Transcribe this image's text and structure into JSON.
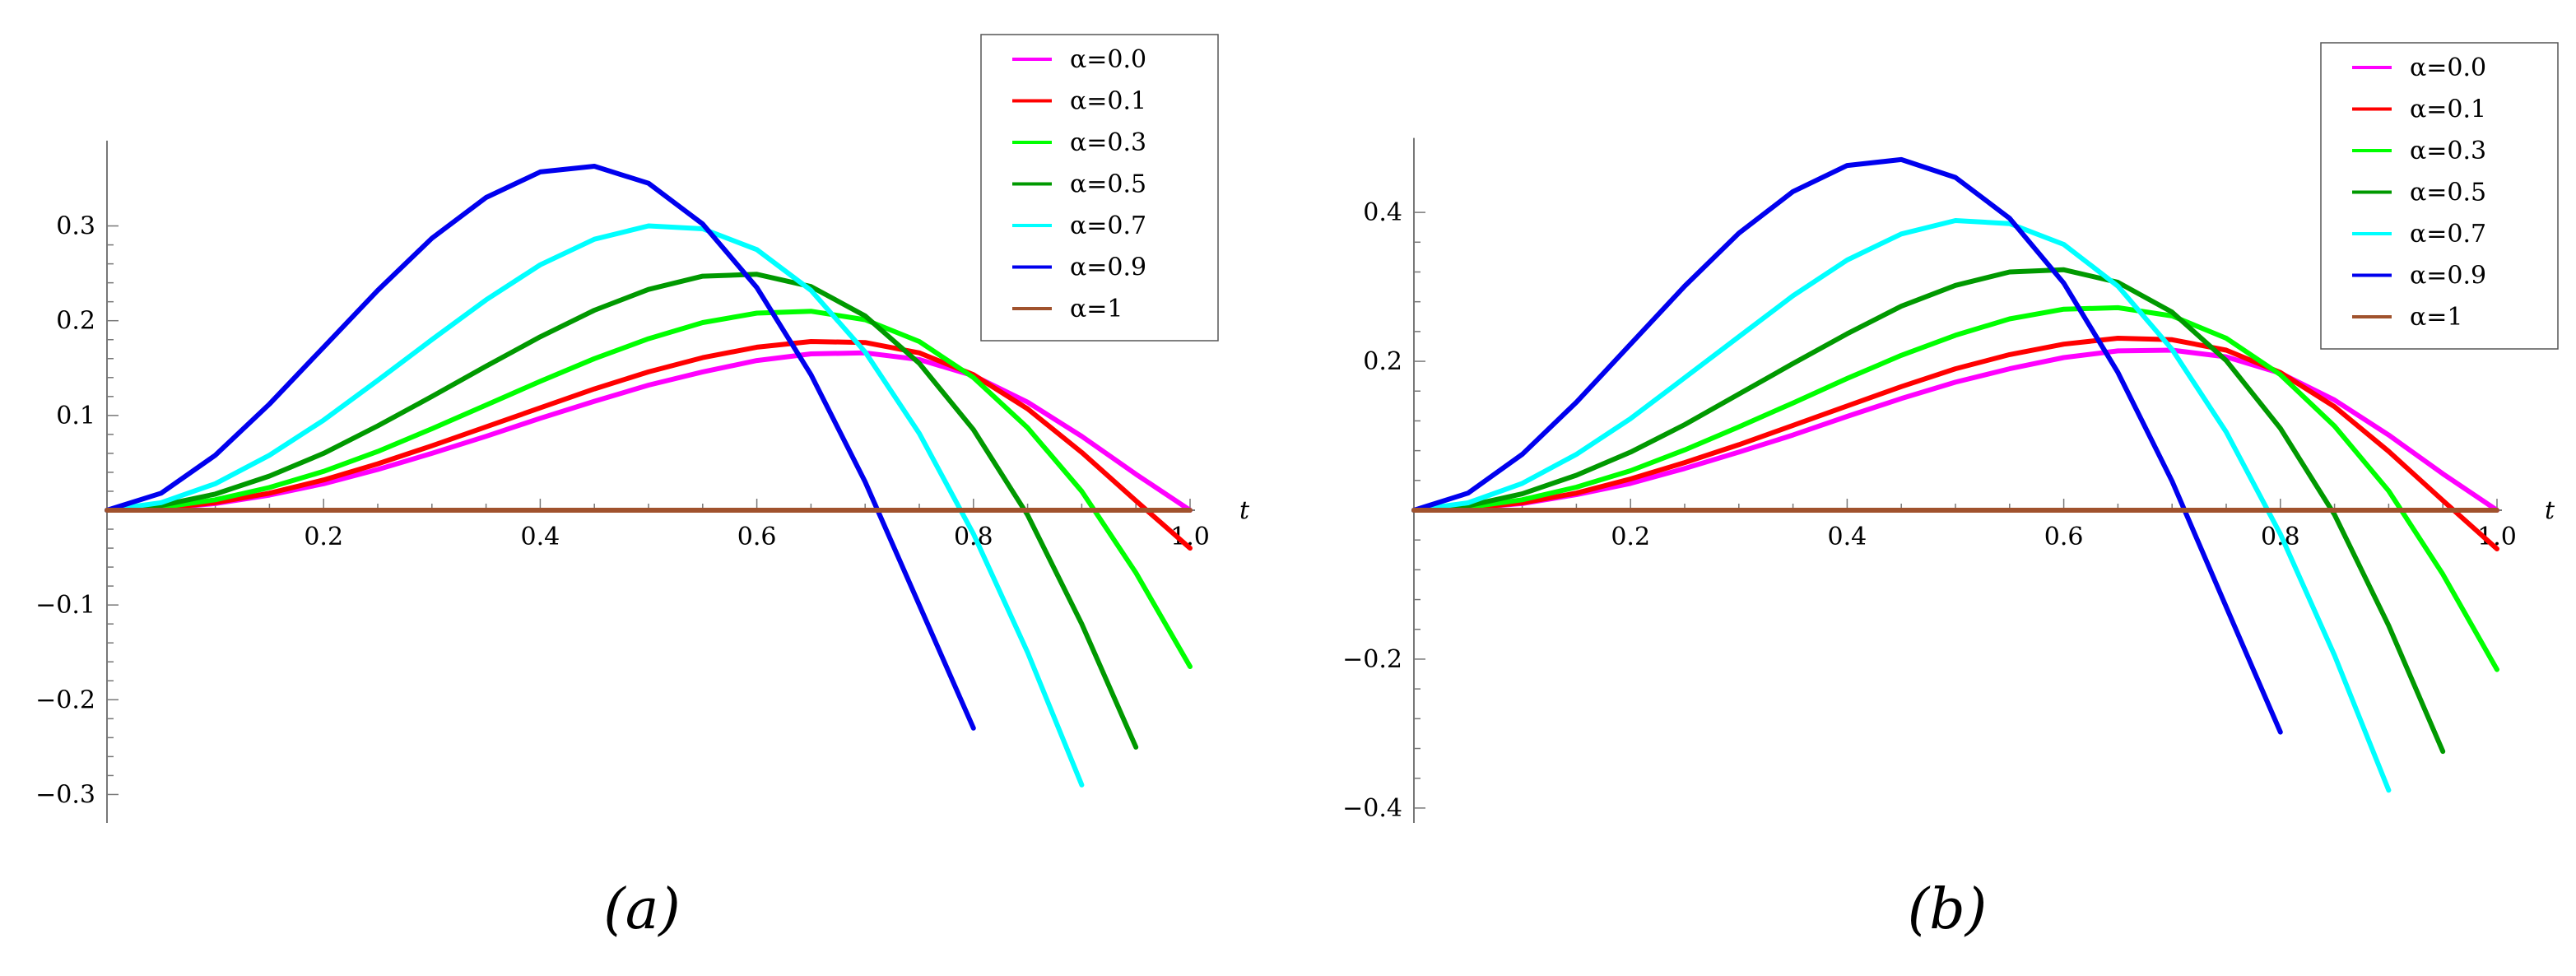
{
  "chart_data": [
    {
      "type": "line",
      "caption": "(a)",
      "xlabel": "t",
      "ylabel": "",
      "xlim": [
        0,
        1.0
      ],
      "ylim": [
        -0.33,
        0.39
      ],
      "x_ticks": [
        0.2,
        0.4,
        0.6,
        0.8,
        1.0
      ],
      "x_tick_labels": [
        "0.2",
        "0.4",
        "0.6",
        "0.8",
        "1.0"
      ],
      "y_ticks": [
        -0.3,
        -0.2,
        -0.1,
        0.1,
        0.2,
        0.3
      ],
      "y_tick_labels": [
        "−0.3",
        "−0.2",
        "−0.1",
        "0.1",
        "0.2",
        "0.3"
      ],
      "grid": false,
      "legend_position": "top-right",
      "x": [
        0,
        0.05,
        0.1,
        0.15,
        0.2,
        0.25,
        0.3,
        0.35,
        0.4,
        0.45,
        0.5,
        0.55,
        0.6,
        0.65,
        0.7,
        0.75,
        0.8,
        0.85,
        0.9,
        0.95,
        1.0
      ],
      "series": [
        {
          "name": "α=0.0",
          "color": "#ff00ff",
          "values": [
            0,
            0.002,
            0.007,
            0.016,
            0.028,
            0.043,
            0.06,
            0.078,
            0.097,
            0.115,
            0.132,
            0.146,
            0.158,
            0.165,
            0.166,
            0.159,
            0.142,
            0.114,
            0.078,
            0.038,
            0.0
          ]
        },
        {
          "name": "α=0.1",
          "color": "#ff0000",
          "values": [
            0,
            0.002,
            0.008,
            0.018,
            0.032,
            0.049,
            0.068,
            0.088,
            0.108,
            0.128,
            0.146,
            0.161,
            0.172,
            0.178,
            0.177,
            0.166,
            0.143,
            0.107,
            0.061,
            0.01,
            -0.04
          ]
        },
        {
          "name": "α=0.3",
          "color": "#00ff00",
          "values": [
            0,
            0.003,
            0.011,
            0.024,
            0.041,
            0.062,
            0.086,
            0.111,
            0.136,
            0.16,
            0.181,
            0.198,
            0.208,
            0.21,
            0.201,
            0.178,
            0.14,
            0.087,
            0.02,
            -0.066,
            -0.165
          ]
        },
        {
          "name": "α=0.5",
          "color": "#009900",
          "values": [
            0,
            0.005,
            0.017,
            0.036,
            0.06,
            0.089,
            0.12,
            0.152,
            0.183,
            0.211,
            0.233,
            0.247,
            0.249,
            0.236,
            0.205,
            0.155,
            0.085,
            -0.005,
            -0.12,
            -0.25,
            null
          ]
        },
        {
          "name": "α=0.7",
          "color": "#00ffff",
          "values": [
            0,
            0.008,
            0.028,
            0.058,
            0.095,
            0.137,
            0.18,
            0.222,
            0.259,
            0.286,
            0.3,
            0.297,
            0.275,
            0.232,
            0.167,
            0.081,
            -0.025,
            -0.15,
            -0.29,
            null,
            null
          ]
        },
        {
          "name": "α=0.9",
          "color": "#0000ee",
          "values": [
            0,
            0.018,
            0.058,
            0.112,
            0.172,
            0.232,
            0.287,
            0.33,
            0.357,
            0.363,
            0.345,
            0.302,
            0.235,
            0.143,
            0.03,
            -0.1,
            -0.23,
            null,
            null,
            null,
            null
          ]
        },
        {
          "name": "α=1",
          "color": "#a0522d",
          "values": [
            0,
            0,
            0,
            0,
            0,
            0,
            0,
            0,
            0,
            0,
            0,
            0,
            0,
            0,
            0,
            0,
            0,
            0,
            0,
            0,
            0
          ]
        }
      ]
    },
    {
      "type": "line",
      "caption": "(b)",
      "xlabel": "t",
      "ylabel": "",
      "xlim": [
        0,
        1.0
      ],
      "ylim": [
        -0.42,
        0.5
      ],
      "x_ticks": [
        0.2,
        0.4,
        0.6,
        0.8,
        1.0
      ],
      "x_tick_labels": [
        "0.2",
        "0.4",
        "0.6",
        "0.8",
        "1.0"
      ],
      "y_ticks": [
        -0.4,
        -0.2,
        0.2,
        0.4
      ],
      "y_tick_labels": [
        "−0.4",
        "−0.2",
        "0.2",
        "0.4"
      ],
      "grid": false,
      "legend_position": "top-right",
      "x": [
        0,
        0.05,
        0.1,
        0.15,
        0.2,
        0.25,
        0.3,
        0.35,
        0.4,
        0.45,
        0.5,
        0.55,
        0.6,
        0.65,
        0.7,
        0.75,
        0.8,
        0.85,
        0.9,
        0.95,
        1.0
      ],
      "series": [
        {
          "name": "α=0.0",
          "color": "#ff00ff",
          "values": [
            0,
            0.003,
            0.009,
            0.021,
            0.036,
            0.056,
            0.078,
            0.101,
            0.126,
            0.15,
            0.172,
            0.19,
            0.205,
            0.214,
            0.215,
            0.206,
            0.184,
            0.148,
            0.101,
            0.049,
            0.0
          ]
        },
        {
          "name": "α=0.1",
          "color": "#ff0000",
          "values": [
            0,
            0.003,
            0.01,
            0.023,
            0.042,
            0.064,
            0.088,
            0.114,
            0.14,
            0.166,
            0.19,
            0.209,
            0.223,
            0.231,
            0.229,
            0.215,
            0.185,
            0.139,
            0.079,
            0.013,
            -0.052
          ]
        },
        {
          "name": "α=0.3",
          "color": "#00ff00",
          "values": [
            0,
            0.004,
            0.014,
            0.031,
            0.053,
            0.081,
            0.112,
            0.144,
            0.177,
            0.208,
            0.235,
            0.257,
            0.27,
            0.272,
            0.261,
            0.231,
            0.182,
            0.113,
            0.026,
            -0.086,
            -0.214
          ]
        },
        {
          "name": "α=0.5",
          "color": "#009900",
          "values": [
            0,
            0.006,
            0.022,
            0.047,
            0.078,
            0.115,
            0.156,
            0.197,
            0.237,
            0.274,
            0.302,
            0.32,
            0.323,
            0.306,
            0.266,
            0.201,
            0.11,
            -0.006,
            -0.155,
            -0.324,
            null
          ]
        },
        {
          "name": "α=0.7",
          "color": "#00ffff",
          "values": [
            0,
            0.01,
            0.036,
            0.075,
            0.123,
            0.178,
            0.233,
            0.288,
            0.336,
            0.371,
            0.389,
            0.385,
            0.357,
            0.301,
            0.216,
            0.105,
            -0.032,
            -0.195,
            -0.376,
            null,
            null
          ]
        },
        {
          "name": "α=0.9",
          "color": "#0000ee",
          "values": [
            0,
            0.023,
            0.075,
            0.145,
            0.223,
            0.301,
            0.372,
            0.428,
            0.463,
            0.471,
            0.447,
            0.392,
            0.305,
            0.185,
            0.039,
            -0.13,
            -0.298,
            null,
            null,
            null,
            null
          ]
        },
        {
          "name": "α=1",
          "color": "#a0522d",
          "values": [
            0,
            0,
            0,
            0,
            0,
            0,
            0,
            0,
            0,
            0,
            0,
            0,
            0,
            0,
            0,
            0,
            0,
            0,
            0,
            0,
            0
          ]
        }
      ]
    }
  ]
}
